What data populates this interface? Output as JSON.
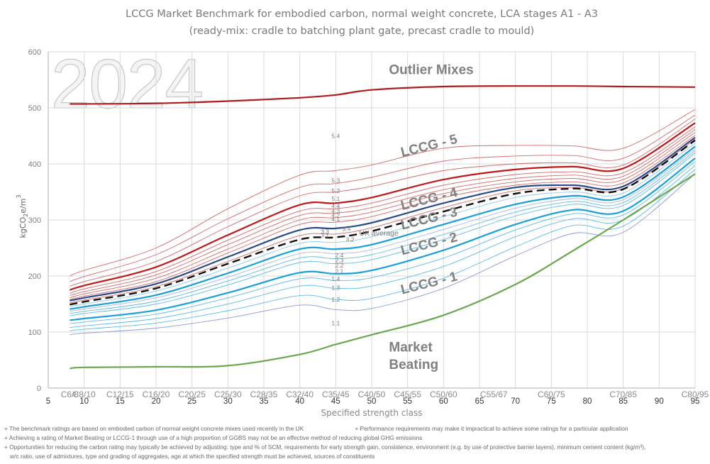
{
  "chart_data": {
    "type": "line",
    "title": "LCCG Market Benchmark for embodied carbon, normal weight concrete, LCA stages A1 - A3 (ready-mix: cradle to batching plant gate, precast cradle to mould)",
    "watermark": "2024",
    "xlabel": "Specified strength class",
    "ylabel": "kgCO2e/m3",
    "xlim": [
      5,
      95
    ],
    "ylim": [
      0,
      600
    ],
    "x_ticks": [
      5,
      10,
      15,
      20,
      25,
      30,
      35,
      40,
      45,
      50,
      55,
      60,
      65,
      70,
      75,
      80,
      85,
      90,
      95
    ],
    "y_ticks": [
      0,
      100,
      200,
      300,
      400,
      500,
      600
    ],
    "grid": true,
    "strength_classes": [
      {
        "label": "C6/8",
        "x": 8
      },
      {
        "label": "C8/10",
        "x": 10
      },
      {
        "label": "C12/15",
        "x": 15
      },
      {
        "label": "C16/20",
        "x": 20
      },
      {
        "label": "C20/25",
        "x": 25
      },
      {
        "label": "C25/30",
        "x": 30
      },
      {
        "label": "C28/35",
        "x": 35
      },
      {
        "label": "C32/40",
        "x": 40
      },
      {
        "label": "C35/45",
        "x": 45
      },
      {
        "label": "C40/50",
        "x": 50
      },
      {
        "label": "C45/55",
        "x": 55
      },
      {
        "label": "C50/60",
        "x": 60
      },
      {
        "label": "C55/67",
        "x": 67
      },
      {
        "label": "C60/75",
        "x": 75
      },
      {
        "label": "C70/85",
        "x": 85
      },
      {
        "label": "C80/95",
        "x": 95
      }
    ],
    "x": [
      8,
      10,
      20,
      30,
      40,
      45,
      50,
      60,
      70,
      78,
      85,
      95
    ],
    "series": [
      {
        "name": "Outlier",
        "color": "#b01c1c",
        "weight": "thick",
        "values": [
          507,
          507,
          508,
          512,
          518,
          523,
          532,
          538,
          539,
          539,
          538,
          537
        ]
      },
      {
        "name": "5.4",
        "color": "#d46a6a",
        "weight": "thin",
        "values": [
          200,
          210,
          250,
          320,
          380,
          388,
          398,
          428,
          433,
          432,
          428,
          497
        ]
      },
      {
        "name": "5.3",
        "color": "#d46a6a",
        "weight": "thin",
        "values": [
          190,
          199,
          238,
          302,
          358,
          365,
          376,
          405,
          414,
          415,
          410,
          487
        ]
      },
      {
        "name": "5.2",
        "color": "#d46a6a",
        "weight": "thin",
        "values": [
          182,
          190,
          226,
          288,
          343,
          350,
          360,
          388,
          400,
          402,
          398,
          480
        ]
      },
      {
        "name": "5.1",
        "color": "#c01818",
        "weight": "thick",
        "values": [
          175,
          183,
          216,
          273,
          327,
          330,
          340,
          372,
          390,
          395,
          392,
          473
        ]
      },
      {
        "name": "4.4",
        "color": "#d46a6a",
        "weight": "thin",
        "values": [
          169,
          177,
          208,
          264,
          316,
          320,
          330,
          362,
          381,
          386,
          384,
          466
        ]
      },
      {
        "name": "4.3",
        "color": "#d46a6a",
        "weight": "thin",
        "values": [
          165,
          172,
          202,
          256,
          308,
          312,
          322,
          354,
          374,
          380,
          378,
          461
        ]
      },
      {
        "name": "4.2",
        "color": "#d46a6a",
        "weight": "thin",
        "values": [
          161,
          168,
          196,
          248,
          300,
          304,
          314,
          347,
          368,
          374,
          372,
          456
        ]
      },
      {
        "name": "4.1",
        "color": "#d46a6a",
        "weight": "thin",
        "values": [
          158,
          164,
          190,
          241,
          292,
          296,
          306,
          340,
          362,
          368,
          366,
          451
        ]
      },
      {
        "name": "3.4",
        "color": "#2b4a8c",
        "weight": "thick",
        "values": [
          156,
          161,
          186,
          234,
          282,
          285,
          295,
          330,
          358,
          362,
          360,
          447
        ]
      },
      {
        "name": "UK average",
        "color": "#111111",
        "weight": "dashed",
        "values": [
          149,
          154,
          178,
          222,
          265,
          269,
          280,
          315,
          347,
          356,
          355,
          442
        ]
      },
      {
        "name": "3.3",
        "color": "#d46a6a",
        "weight": "thin",
        "values": [
          152,
          157,
          181,
          226,
          272,
          275,
          286,
          322,
          352,
          358,
          356,
          444
        ]
      },
      {
        "name": "3.2",
        "color": "#8ecbe8",
        "weight": "thin",
        "values": [
          146,
          150,
          173,
          214,
          258,
          260,
          270,
          306,
          340,
          350,
          348,
          437
        ]
      },
      {
        "name": "3.1",
        "color": "#1aa0d8",
        "weight": "thick",
        "values": [
          141,
          145,
          166,
          205,
          248,
          248,
          256,
          292,
          328,
          343,
          341,
          431
        ]
      },
      {
        "name": "2.4",
        "color": "#a9b6e0",
        "weight": "thin",
        "values": [
          137,
          141,
          161,
          198,
          240,
          240,
          247,
          283,
          321,
          338,
          336,
          427
        ]
      },
      {
        "name": "2.3",
        "color": "#5bbce6",
        "weight": "thin",
        "values": [
          133,
          137,
          155,
          191,
          232,
          231,
          238,
          274,
          314,
          333,
          331,
          423
        ]
      },
      {
        "name": "2.2",
        "color": "#5bbce6",
        "weight": "thin",
        "values": [
          129,
          133,
          150,
          184,
          224,
          222,
          229,
          265,
          307,
          328,
          326,
          419
        ]
      },
      {
        "name": "2.1",
        "color": "#1aa0d8",
        "weight": "thick",
        "values": [
          121,
          124,
          139,
          170,
          206,
          204,
          210,
          246,
          292,
          318,
          316,
          410
        ]
      },
      {
        "name": "1.4",
        "color": "#5bbce6",
        "weight": "thin",
        "values": [
          115,
          118,
          132,
          161,
          195,
          192,
          197,
          232,
          282,
          311,
          309,
          404
        ]
      },
      {
        "name": "1.3",
        "color": "#5bbce6",
        "weight": "thin",
        "values": [
          108,
          111,
          124,
          150,
          182,
          178,
          182,
          217,
          270,
          302,
          300,
          397
        ]
      },
      {
        "name": "1.2",
        "color": "#5bbce6",
        "weight": "thin",
        "values": [
          102,
          105,
          116,
          138,
          165,
          158,
          160,
          196,
          252,
          290,
          289,
          390
        ]
      },
      {
        "name": "1.1",
        "color": "#8c9ad6",
        "weight": "thin",
        "values": [
          95,
          98,
          107,
          125,
          148,
          140,
          142,
          178,
          236,
          276,
          278,
          382
        ]
      },
      {
        "name": "Market Beating",
        "color": "#6aa84f",
        "weight": "thick",
        "values": [
          35,
          37,
          38,
          40,
          60,
          78,
          95,
          130,
          185,
          245,
          300,
          382
        ]
      }
    ],
    "curve_labels": [
      {
        "text": "5.4",
        "x": 45,
        "y": 450
      },
      {
        "text": "5.3",
        "x": 45,
        "y": 370
      },
      {
        "text": "5.2",
        "x": 45,
        "y": 352
      },
      {
        "text": "5.1",
        "x": 45,
        "y": 338
      },
      {
        "text": "4.4",
        "x": 45,
        "y": 325
      },
      {
        "text": "4.3",
        "x": 45,
        "y": 316
      },
      {
        "text": "4.2",
        "x": 45,
        "y": 308
      },
      {
        "text": "4.1",
        "x": 45,
        "y": 301
      },
      {
        "text": "3.4",
        "x": 46.5,
        "y": 284
      },
      {
        "text": "3.3",
        "x": 43.5,
        "y": 279
      },
      {
        "text": "3.2",
        "x": 47,
        "y": 265
      },
      {
        "text": "3.1",
        "x": 43.5,
        "y": 273
      },
      {
        "text": "2.4",
        "x": 45.5,
        "y": 237
      },
      {
        "text": "2.3",
        "x": 45.5,
        "y": 228
      },
      {
        "text": "2.2",
        "x": 45.5,
        "y": 219
      },
      {
        "text": "2.1",
        "x": 45.5,
        "y": 208
      },
      {
        "text": "1.4",
        "x": 45,
        "y": 195
      },
      {
        "text": "1.3",
        "x": 45,
        "y": 179
      },
      {
        "text": "1.2",
        "x": 45,
        "y": 158
      },
      {
        "text": "1.1",
        "x": 45,
        "y": 116
      },
      {
        "text": "UK average",
        "x": 51,
        "y": 276
      }
    ],
    "band_labels": [
      {
        "text": "Outlier Mixes",
        "x": 53,
        "y": 560
      },
      {
        "text": "LCCG - 5",
        "x": 55,
        "y": 415
      },
      {
        "text": "LCCG - 4",
        "x": 55,
        "y": 320
      },
      {
        "text": "LCCG - 3",
        "x": 55,
        "y": 285
      },
      {
        "text": "LCCG - 2",
        "x": 55,
        "y": 240
      },
      {
        "text": "LCCG - 1",
        "x": 55,
        "y": 170
      },
      {
        "text": "Market",
        "x": 53,
        "y": 65
      },
      {
        "text": "Beating",
        "x": 53,
        "y": 34
      }
    ]
  },
  "footnotes": {
    "line1a": "+ The benchmark ratings are based on embodied carbon of normal weight concrete mixes used recently in the UK",
    "line1b": "+ Performance requirements may make it impractical to achieve some ratings for a particular application",
    "line2": "+ Achieving a rating of Market Beating or LCCG-1 through use of a  high proportion of GGBS may not be an effective method of reducing global GHG emissions",
    "line3": "+ Opportunities for reducing the carbon rating may typically be achieved by adjusting: type and % of SCM, requirements for early strength gain, consistence, environment (e.g. by use of protective barrier layers), minimum cement content (kg/m³),",
    "line4": "  w/c ratio, use of admixtures, type and grading of aggregates, age at which the specified strength must be achieved, sources of constituents"
  }
}
